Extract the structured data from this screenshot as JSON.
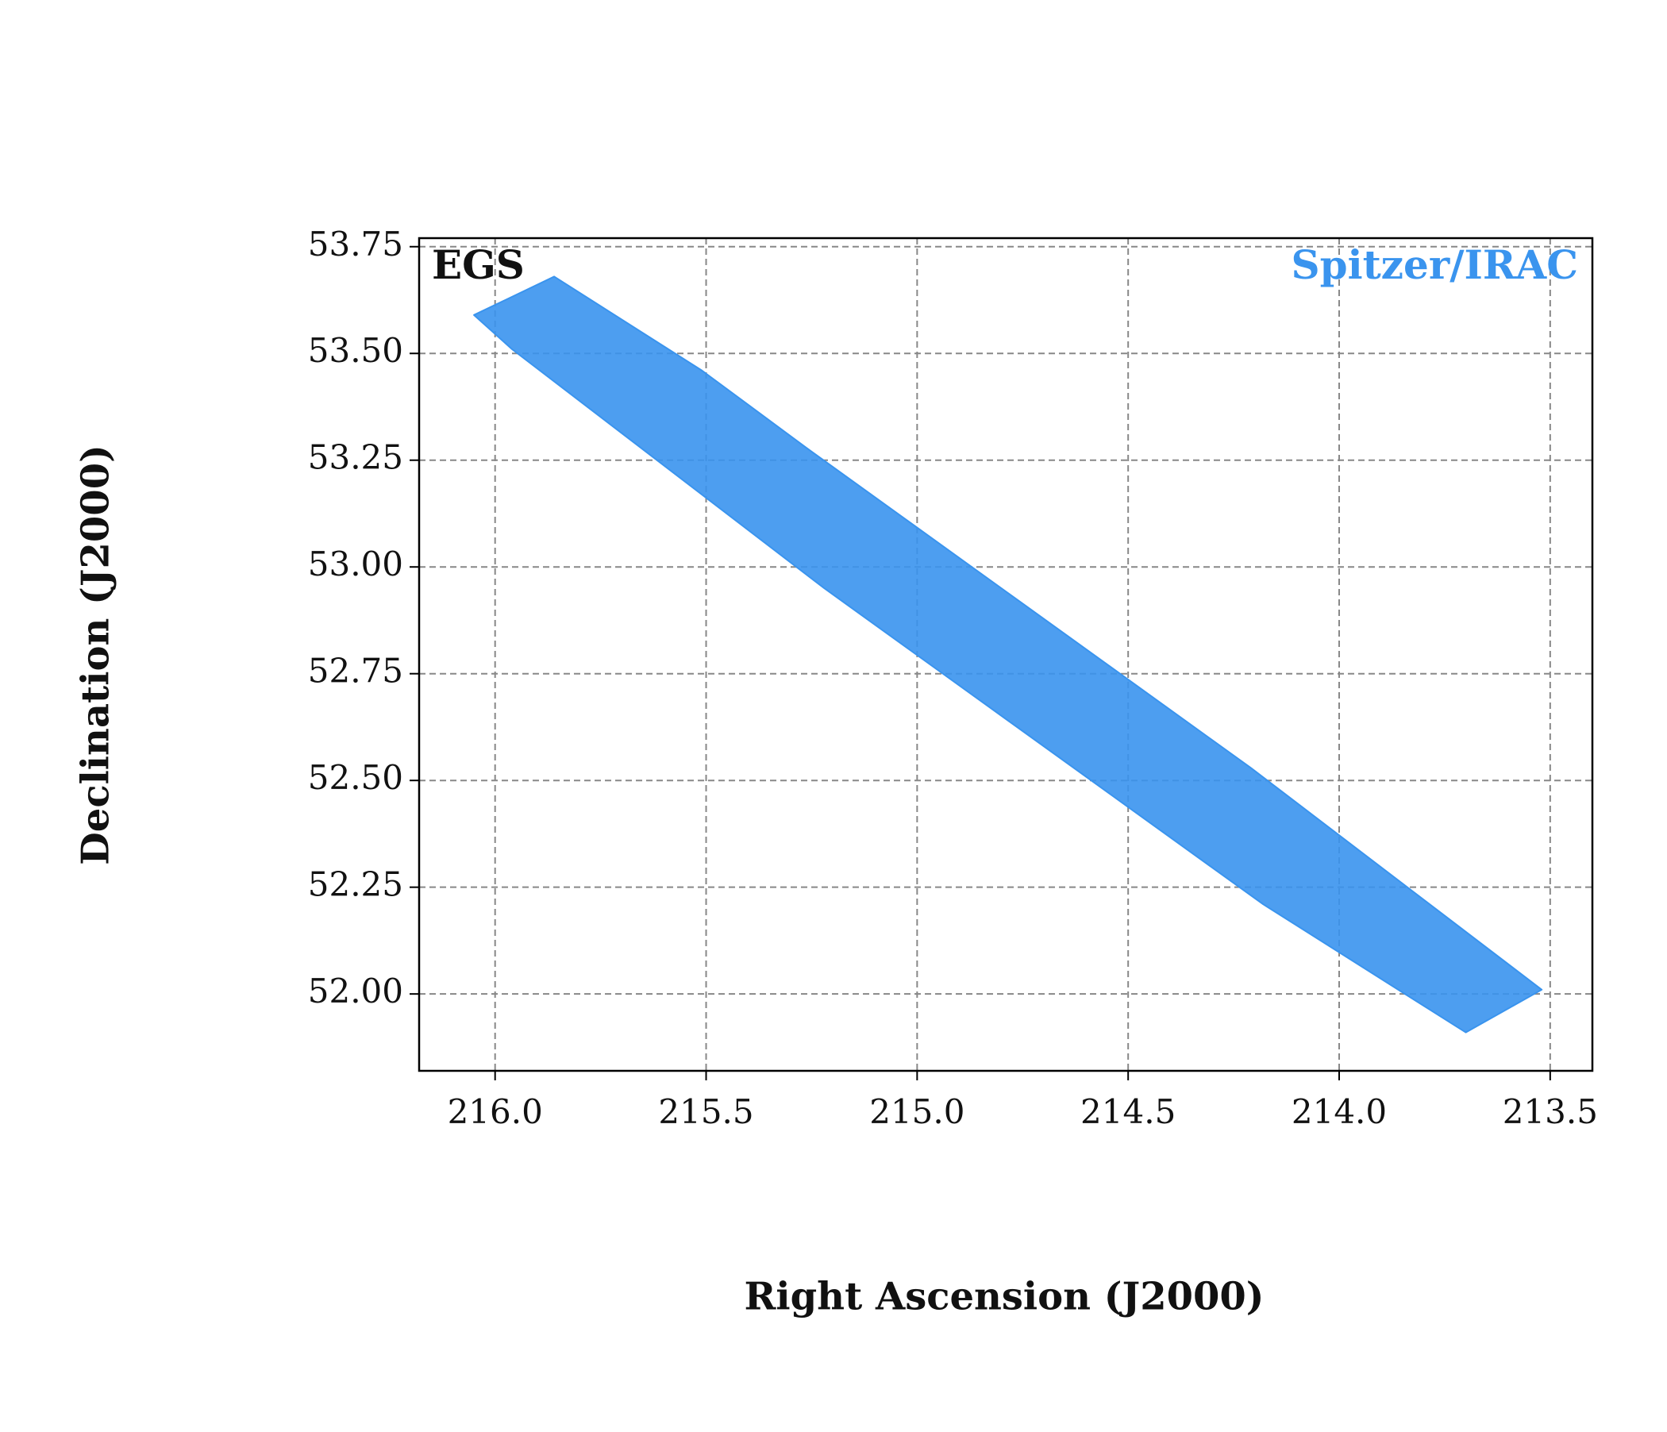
{
  "chart_data": {
    "type": "polygon",
    "field_label": "EGS",
    "x_label": "Right Ascension (J2000)",
    "y_label": "Declination (J2000)",
    "xlim": [
      216.18,
      213.4
    ],
    "ylim": [
      51.82,
      53.77
    ],
    "xticks": [
      {
        "value": 216.0,
        "label": "216.0"
      },
      {
        "value": 215.5,
        "label": "215.5"
      },
      {
        "value": 215.0,
        "label": "215.0"
      },
      {
        "value": 214.5,
        "label": "214.5"
      },
      {
        "value": 214.0,
        "label": "214.0"
      },
      {
        "value": 213.5,
        "label": "213.5"
      }
    ],
    "yticks": [
      {
        "value": 52.0,
        "label": "52.00"
      },
      52.25,
      {
        "value": 52.5,
        "label": "52.50"
      },
      52.75,
      {
        "value": 53.0,
        "label": "53.00"
      },
      53.25,
      {
        "value": 53.5,
        "label": "53.50"
      },
      53.75
    ],
    "grid": true,
    "legend": "upper right",
    "series": [
      {
        "name": "Spitzer/IRAC",
        "color": "#3a94ee",
        "x": [
          216.05,
          215.86,
          215.51,
          215.25,
          214.21,
          213.52,
          213.7,
          214.18,
          215.22,
          215.96
        ],
        "y": [
          53.59,
          53.68,
          53.46,
          53.27,
          52.53,
          52.01,
          51.91,
          52.21,
          52.95,
          53.51
        ]
      }
    ]
  }
}
